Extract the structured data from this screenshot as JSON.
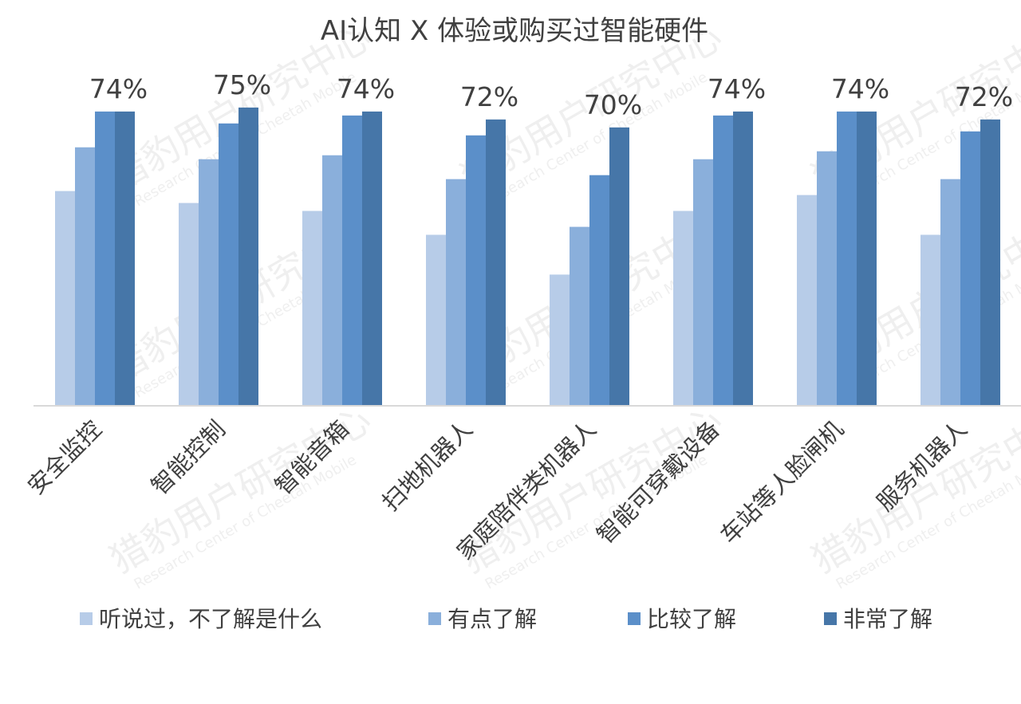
{
  "watermark": {
    "text": "猎豹用户研究中心",
    "subtext": "Research Center of Cheetah Mobile"
  },
  "chart_data": {
    "type": "bar",
    "title": "AI认知 X 体验或购买过智能硬件",
    "categories": [
      "安全监控",
      "智能控制",
      "智能音箱",
      "扫地机器人",
      "家庭陪伴类机器人",
      "智能可穿戴设备",
      "车站等人脸闸机",
      "服务机器人"
    ],
    "series": [
      {
        "name": "听说过，不了解是什么",
        "color": "#b7cce8",
        "values": [
          54,
          51,
          49,
          43,
          33,
          49,
          53,
          43
        ]
      },
      {
        "name": "有点了解",
        "color": "#8aafdb",
        "values": [
          65,
          62,
          63,
          57,
          45,
          62,
          64,
          57
        ]
      },
      {
        "name": "比较了解",
        "color": "#5b8fc9",
        "values": [
          74,
          71,
          73,
          68,
          58,
          73,
          74,
          69
        ]
      },
      {
        "name": "非常了解",
        "color": "#4676a8",
        "values": [
          74,
          75,
          74,
          72,
          70,
          74,
          74,
          72
        ]
      }
    ],
    "data_labels": [
      "74%",
      "75%",
      "74%",
      "72%",
      "70%",
      "74%",
      "74%",
      "72%"
    ],
    "ylim": [
      0,
      85
    ],
    "grid": false,
    "legend_position": "bottom"
  }
}
